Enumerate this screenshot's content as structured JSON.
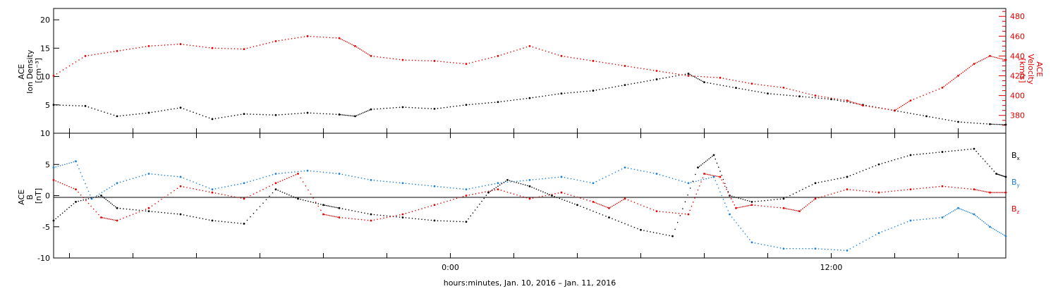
{
  "chart_data": [
    {
      "type": "scatter",
      "panel": "top",
      "ylabel_left": [
        "ACE",
        "Ion Density",
        "[cm⁻³]"
      ],
      "ylabel_right": [
        "ACE",
        "Velocity",
        "[km/s]"
      ],
      "left_axis": {
        "ylim": [
          0,
          22
        ],
        "ticks": [
          5,
          10,
          15,
          20
        ]
      },
      "right_axis": {
        "ylim": [
          362,
          488
        ],
        "ticks": [
          380,
          400,
          420,
          440,
          460,
          480
        ],
        "color": "#e00000"
      },
      "xlim_hours": [
        -12.5,
        17.5
      ],
      "series": [
        {
          "name": "Ion Density",
          "axis": "left",
          "color": "#000000",
          "points": [
            [
              -12.5,
              5.0
            ],
            [
              -11.5,
              4.8
            ],
            [
              -10.5,
              3.0
            ],
            [
              -9.5,
              3.6
            ],
            [
              -8.5,
              4.5
            ],
            [
              -7.5,
              2.5
            ],
            [
              -6.5,
              3.4
            ],
            [
              -5.5,
              3.2
            ],
            [
              -4.5,
              3.6
            ],
            [
              -3.5,
              3.3
            ],
            [
              -3.0,
              3.0
            ],
            [
              -2.5,
              4.2
            ],
            [
              -1.5,
              4.6
            ],
            [
              -0.5,
              4.3
            ],
            [
              0.5,
              5.0
            ],
            [
              1.5,
              5.5
            ],
            [
              2.5,
              6.2
            ],
            [
              3.5,
              7.0
            ],
            [
              4.5,
              7.5
            ],
            [
              5.5,
              8.5
            ],
            [
              6.5,
              9.5
            ],
            [
              7.5,
              10.5
            ],
            [
              8.0,
              9.0
            ],
            [
              9.0,
              8.0
            ],
            [
              10.0,
              7.0
            ],
            [
              11.0,
              6.5
            ],
            [
              12.0,
              6.0
            ],
            [
              13.0,
              5.0
            ],
            [
              14.0,
              4.0
            ],
            [
              15.0,
              3.0
            ],
            [
              16.0,
              2.0
            ],
            [
              17.0,
              1.6
            ],
            [
              17.5,
              1.5
            ]
          ]
        },
        {
          "name": "Velocity",
          "axis": "right",
          "color": "#e00000",
          "points": [
            [
              -12.5,
              420
            ],
            [
              -11.5,
              440
            ],
            [
              -10.5,
              445
            ],
            [
              -9.5,
              450
            ],
            [
              -8.5,
              452
            ],
            [
              -7.5,
              448
            ],
            [
              -6.5,
              447
            ],
            [
              -5.5,
              455
            ],
            [
              -4.5,
              460
            ],
            [
              -3.5,
              458
            ],
            [
              -3.0,
              450
            ],
            [
              -2.5,
              440
            ],
            [
              -1.5,
              436
            ],
            [
              -0.5,
              435
            ],
            [
              0.5,
              432
            ],
            [
              1.5,
              440
            ],
            [
              2.5,
              450
            ],
            [
              3.5,
              440
            ],
            [
              4.5,
              435
            ],
            [
              5.5,
              430
            ],
            [
              6.5,
              425
            ],
            [
              7.5,
              420
            ],
            [
              8.5,
              418
            ],
            [
              9.5,
              412
            ],
            [
              10.5,
              408
            ],
            [
              11.5,
              400
            ],
            [
              12.5,
              395
            ],
            [
              13.0,
              390
            ],
            [
              14.0,
              385
            ],
            [
              14.5,
              395
            ],
            [
              15.5,
              408
            ],
            [
              16.0,
              420
            ],
            [
              16.5,
              432
            ],
            [
              17.0,
              440
            ],
            [
              17.5,
              436
            ]
          ]
        }
      ]
    },
    {
      "type": "scatter",
      "panel": "bottom",
      "ylabel_left": [
        "ACE",
        "B",
        "[nT]"
      ],
      "ylim": [
        -10,
        10
      ],
      "yticks": [
        -10,
        -5,
        0,
        5,
        10
      ],
      "zero_line": true,
      "xlim_hours": [
        -12.5,
        17.5
      ],
      "series": [
        {
          "name": "Bx",
          "label_main": "B",
          "label_sub": "x",
          "color": "#000000",
          "points": [
            [
              -12.5,
              -4.0
            ],
            [
              -11.8,
              -1.0
            ],
            [
              -11.0,
              0.0
            ],
            [
              -10.5,
              -2.0
            ],
            [
              -9.5,
              -2.5
            ],
            [
              -8.5,
              -3.0
            ],
            [
              -7.5,
              -4.0
            ],
            [
              -6.5,
              -4.5
            ],
            [
              -5.5,
              1.0
            ],
            [
              -4.8,
              -0.5
            ],
            [
              -4.0,
              -1.5
            ],
            [
              -3.5,
              -2.0
            ],
            [
              -2.5,
              -3.0
            ],
            [
              -1.5,
              -3.5
            ],
            [
              -0.5,
              -4.0
            ],
            [
              0.5,
              -4.2
            ],
            [
              1.2,
              0.5
            ],
            [
              1.8,
              2.5
            ],
            [
              2.5,
              1.5
            ],
            [
              3.2,
              0.0
            ],
            [
              4.0,
              -1.5
            ],
            [
              5.0,
              -3.5
            ],
            [
              6.0,
              -5.5
            ],
            [
              7.0,
              -6.5
            ],
            [
              7.8,
              4.5
            ],
            [
              8.3,
              6.5
            ],
            [
              8.8,
              0.0
            ],
            [
              9.5,
              -1.0
            ],
            [
              10.5,
              -0.5
            ],
            [
              11.5,
              2.0
            ],
            [
              12.5,
              3.0
            ],
            [
              13.5,
              5.0
            ],
            [
              14.5,
              6.5
            ],
            [
              15.5,
              7.0
            ],
            [
              16.5,
              7.5
            ],
            [
              17.2,
              3.5
            ],
            [
              17.5,
              3.0
            ]
          ]
        },
        {
          "name": "By",
          "label_main": "B",
          "label_sub": "y",
          "color": "#1a7fd4",
          "points": [
            [
              -12.5,
              4.5
            ],
            [
              -11.8,
              5.5
            ],
            [
              -11.3,
              -0.5
            ],
            [
              -10.5,
              2.0
            ],
            [
              -9.5,
              3.5
            ],
            [
              -8.5,
              3.0
            ],
            [
              -7.5,
              1.0
            ],
            [
              -6.5,
              2.0
            ],
            [
              -5.5,
              3.5
            ],
            [
              -4.5,
              4.0
            ],
            [
              -3.5,
              3.5
            ],
            [
              -2.5,
              2.5
            ],
            [
              -1.5,
              2.0
            ],
            [
              -0.5,
              1.5
            ],
            [
              0.5,
              1.0
            ],
            [
              1.5,
              2.0
            ],
            [
              2.5,
              2.5
            ],
            [
              3.5,
              3.0
            ],
            [
              4.5,
              2.0
            ],
            [
              5.5,
              4.5
            ],
            [
              6.5,
              3.5
            ],
            [
              7.5,
              2.0
            ],
            [
              8.3,
              3.0
            ],
            [
              8.8,
              -3.0
            ],
            [
              9.5,
              -7.5
            ],
            [
              10.5,
              -8.5
            ],
            [
              11.5,
              -8.5
            ],
            [
              12.5,
              -8.8
            ],
            [
              13.5,
              -6.0
            ],
            [
              14.5,
              -4.0
            ],
            [
              15.5,
              -3.5
            ],
            [
              16.0,
              -2.0
            ],
            [
              16.5,
              -3.0
            ],
            [
              17.0,
              -5.0
            ],
            [
              17.5,
              -6.5
            ]
          ]
        },
        {
          "name": "Bz",
          "label_main": "B",
          "label_sub": "z",
          "color": "#e00000",
          "points": [
            [
              -12.5,
              2.5
            ],
            [
              -11.8,
              1.0
            ],
            [
              -11.0,
              -3.5
            ],
            [
              -10.5,
              -4.0
            ],
            [
              -9.5,
              -2.0
            ],
            [
              -8.5,
              1.5
            ],
            [
              -7.5,
              0.5
            ],
            [
              -6.5,
              -0.5
            ],
            [
              -5.5,
              2.0
            ],
            [
              -4.8,
              3.5
            ],
            [
              -4.0,
              -3.0
            ],
            [
              -3.5,
              -3.5
            ],
            [
              -2.5,
              -4.0
            ],
            [
              -1.5,
              -3.0
            ],
            [
              -0.5,
              -1.5
            ],
            [
              0.5,
              0.0
            ],
            [
              1.5,
              1.0
            ],
            [
              2.5,
              -0.5
            ],
            [
              3.5,
              0.5
            ],
            [
              4.5,
              -1.0
            ],
            [
              5.0,
              -2.0
            ],
            [
              5.5,
              -0.5
            ],
            [
              6.5,
              -2.5
            ],
            [
              7.5,
              -3.0
            ],
            [
              8.0,
              3.5
            ],
            [
              8.5,
              3.0
            ],
            [
              9.0,
              -2.0
            ],
            [
              9.5,
              -1.5
            ],
            [
              10.5,
              -2.0
            ],
            [
              11.0,
              -2.5
            ],
            [
              11.5,
              -0.5
            ],
            [
              12.5,
              1.0
            ],
            [
              13.5,
              0.5
            ],
            [
              14.5,
              1.0
            ],
            [
              15.5,
              1.5
            ],
            [
              16.5,
              1.0
            ],
            [
              17.0,
              0.5
            ],
            [
              17.5,
              0.5
            ]
          ]
        }
      ]
    }
  ],
  "x_axis": {
    "tick_labels": [
      {
        "hours": 0,
        "label": "0:00"
      },
      {
        "hours": 12,
        "label": "12:00"
      }
    ],
    "minor_tick_step_hours": 2,
    "range_hours": [
      -12.5,
      17.5
    ],
    "title": "hours:minutes, Jan. 10, 2016 – Jan. 11, 2016"
  }
}
